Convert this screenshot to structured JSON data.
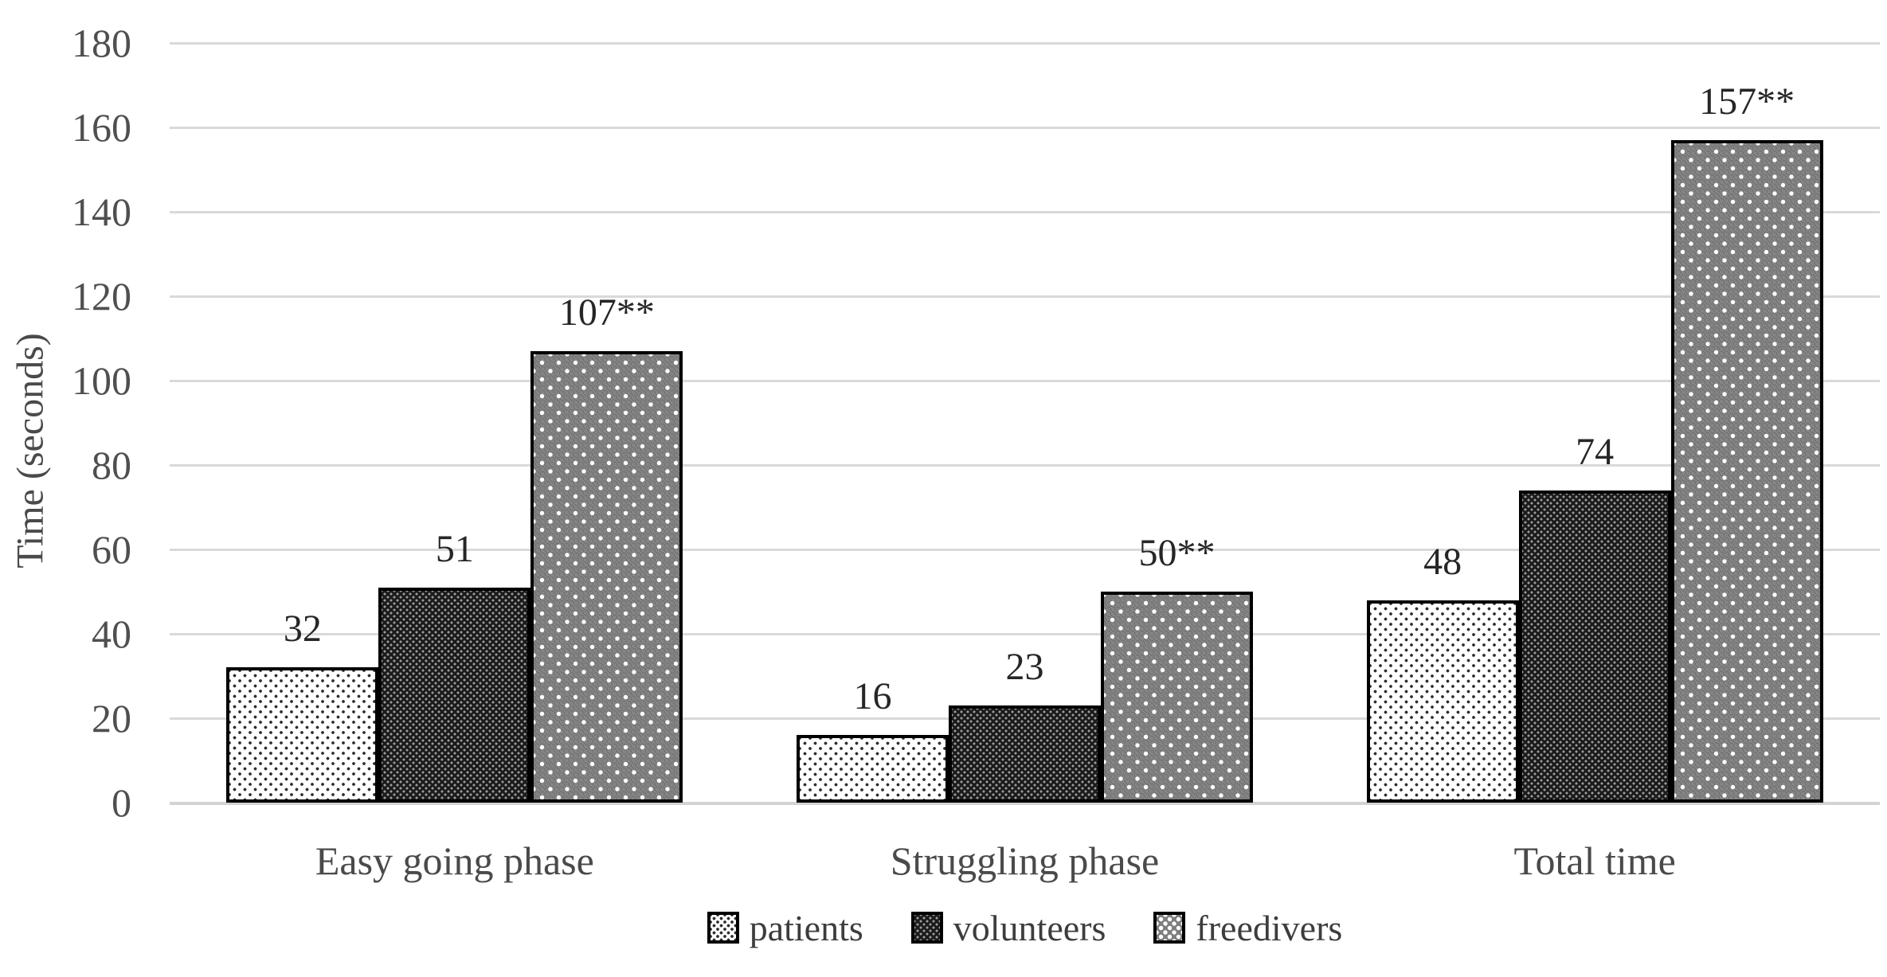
{
  "chart_data": {
    "type": "bar",
    "title": "",
    "xlabel": "",
    "ylabel": "Time (seconds)",
    "ylim": [
      0,
      180
    ],
    "ytick_step": 20,
    "ytick_labels": [
      "180",
      "160",
      "140",
      "120",
      "100",
      "80",
      "60",
      "40",
      "20",
      "0"
    ],
    "grid": true,
    "legend_position": "bottom",
    "categories": [
      "Easy going phase",
      "Struggling phase",
      "Total time"
    ],
    "series": [
      {
        "name": "patients",
        "pattern": "white-with-dark-dots",
        "values": [
          32,
          16,
          48
        ],
        "data_labels": [
          "32",
          "16",
          "48"
        ]
      },
      {
        "name": "volunteers",
        "pattern": "black-with-light-dots",
        "values": [
          51,
          23,
          74
        ],
        "data_labels": [
          "51",
          "23",
          "74"
        ]
      },
      {
        "name": "freedivers",
        "pattern": "gray-with-white-dots",
        "values": [
          107,
          50,
          157
        ],
        "data_labels": [
          "107**",
          "50**",
          "157**"
        ]
      }
    ],
    "colors": {
      "gridline": "#d9d9d9",
      "bar_border": "#000000",
      "axis_text": "#4a4a4a",
      "data_label_text": "#262626",
      "patients_fill_bg": "#ffffff",
      "volunteers_fill_bg": "#1b1b1b",
      "freedivers_fill_bg": "#7c7c7c"
    }
  }
}
